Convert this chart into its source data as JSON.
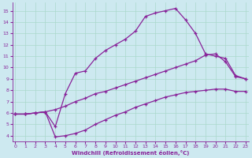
{
  "xlabel": "Windchill (Refroidissement éolien,°C)",
  "background_color": "#cde9f0",
  "line_color": "#882299",
  "grid_color": "#aad8cc",
  "x_ticks": [
    0,
    1,
    2,
    3,
    4,
    5,
    6,
    7,
    8,
    9,
    10,
    11,
    12,
    13,
    14,
    15,
    16,
    17,
    18,
    19,
    20,
    21,
    22,
    23
  ],
  "y_ticks": [
    4,
    5,
    6,
    7,
    8,
    9,
    10,
    11,
    12,
    13,
    14,
    15
  ],
  "xlim": [
    -0.3,
    23.3
  ],
  "ylim": [
    3.5,
    15.7
  ],
  "curve1_x": [
    0,
    1,
    2,
    3,
    4,
    5,
    6,
    7,
    8,
    9,
    10,
    11,
    12,
    13,
    14,
    15,
    16,
    17,
    18,
    19,
    20,
    21,
    22,
    23
  ],
  "curve1_y": [
    5.9,
    5.9,
    6.0,
    6.1,
    4.8,
    7.7,
    9.5,
    9.7,
    10.8,
    11.5,
    12.0,
    12.5,
    13.2,
    14.5,
    14.8,
    15.0,
    15.2,
    14.2,
    13.0,
    11.2,
    11.0,
    10.8,
    9.3,
    9.0
  ],
  "curve2_x": [
    0,
    1,
    2,
    3,
    4,
    5,
    6,
    7,
    8,
    9,
    10,
    11,
    12,
    13,
    14,
    15,
    16,
    17,
    18,
    19,
    20,
    21,
    22,
    23
  ],
  "curve2_y": [
    5.9,
    5.9,
    6.0,
    6.1,
    6.3,
    6.6,
    7.0,
    7.3,
    7.7,
    7.9,
    8.2,
    8.5,
    8.8,
    9.1,
    9.4,
    9.7,
    10.0,
    10.3,
    10.6,
    11.1,
    11.2,
    10.5,
    9.2,
    9.0
  ],
  "curve3_x": [
    0,
    1,
    2,
    3,
    4,
    5,
    6,
    7,
    8,
    9,
    10,
    11,
    12,
    13,
    14,
    15,
    16,
    17,
    18,
    19,
    20,
    21,
    22,
    23
  ],
  "curve3_y": [
    5.9,
    5.9,
    6.0,
    6.1,
    3.9,
    4.0,
    4.2,
    4.5,
    5.0,
    5.4,
    5.8,
    6.1,
    6.5,
    6.8,
    7.1,
    7.4,
    7.6,
    7.8,
    7.9,
    8.0,
    8.1,
    8.1,
    7.9,
    7.9
  ]
}
